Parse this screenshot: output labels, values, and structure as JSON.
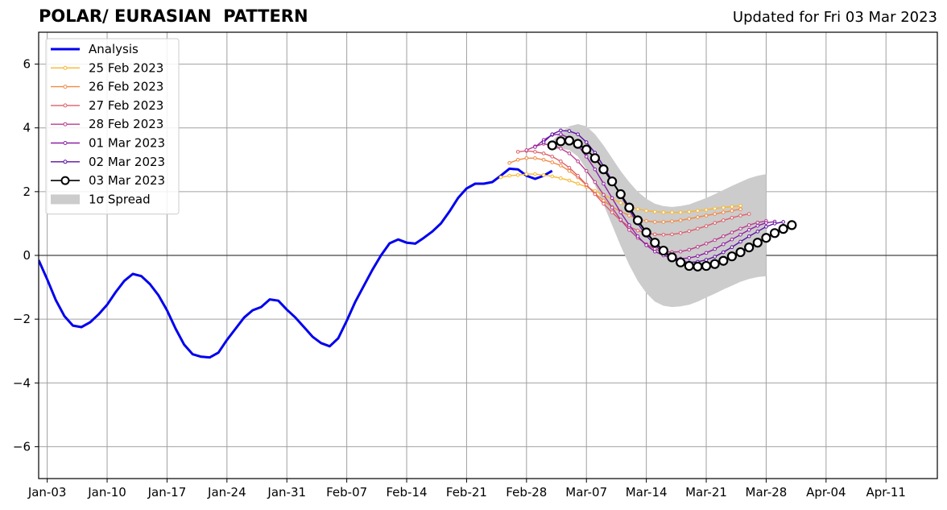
{
  "chart_data": {
    "type": "line",
    "title": "POLAR/ EURASIAN  PATTERN",
    "subtitle": "Updated for Fri 03 Mar 2023",
    "ylim": [
      -7,
      7
    ],
    "yticks": [
      -6,
      -4,
      -2,
      0,
      2,
      4,
      6
    ],
    "ytick_labels": [
      "−6",
      "−4",
      "−2",
      "0",
      "2",
      "4",
      "6"
    ],
    "xlim": [
      "2023-01-02",
      "2023-04-17"
    ],
    "xticks": [
      "2023-01-03",
      "2023-01-10",
      "2023-01-17",
      "2023-01-24",
      "2023-01-31",
      "2023-02-07",
      "2023-02-14",
      "2023-02-21",
      "2023-02-28",
      "2023-03-07",
      "2023-03-14",
      "2023-03-21",
      "2023-03-28",
      "2023-04-04",
      "2023-04-11"
    ],
    "xtick_labels": [
      "Jan-03",
      "Jan-10",
      "Jan-17",
      "Jan-24",
      "Jan-31",
      "Feb-07",
      "Feb-14",
      "Feb-21",
      "Feb-28",
      "Mar-07",
      "Mar-14",
      "Mar-21",
      "Mar-28",
      "Apr-04",
      "Apr-11"
    ],
    "grid": true,
    "legend_position": "top-left",
    "analysis": {
      "name": "Analysis",
      "color": "#0000ee",
      "start": "2023-01-02",
      "values": [
        -0.15,
        -0.75,
        -1.4,
        -1.9,
        -2.2,
        -2.25,
        -2.1,
        -1.85,
        -1.55,
        -1.15,
        -0.8,
        -0.58,
        -0.65,
        -0.9,
        -1.25,
        -1.72,
        -2.3,
        -2.8,
        -3.1,
        -3.18,
        -3.2,
        -3.05,
        -2.65,
        -2.3,
        -1.95,
        -1.72,
        -1.62,
        -1.38,
        -1.42,
        -1.7,
        -1.95,
        -2.25,
        -2.55,
        -2.75,
        -2.85,
        -2.6,
        -2.05,
        -1.45,
        -0.95,
        -0.45,
        0.0,
        0.38,
        0.5,
        0.4,
        0.37,
        0.55,
        0.75,
        1.0,
        1.38,
        1.8,
        2.1,
        2.25,
        2.25,
        2.3,
        2.5,
        2.72,
        2.7,
        2.5,
        2.4,
        2.5,
        2.65
      ]
    },
    "spread": {
      "name": "1σ Spread",
      "color": "#cccccc",
      "start": "2023-03-03",
      "upper": [
        3.6,
        3.85,
        4.05,
        4.12,
        4.05,
        3.8,
        3.45,
        3.05,
        2.65,
        2.3,
        2.0,
        1.78,
        1.62,
        1.55,
        1.52,
        1.55,
        1.6,
        1.7,
        1.8,
        1.92,
        2.05,
        2.18,
        2.3,
        2.42,
        2.5,
        2.55
      ],
      "lower": [
        3.3,
        3.35,
        3.3,
        3.1,
        2.7,
        2.2,
        1.6,
        0.95,
        0.3,
        -0.3,
        -0.8,
        -1.18,
        -1.45,
        -1.58,
        -1.62,
        -1.6,
        -1.55,
        -1.45,
        -1.32,
        -1.2,
        -1.07,
        -0.95,
        -0.83,
        -0.74,
        -0.68,
        -0.65
      ]
    },
    "series": [
      {
        "name": "25 Feb 2023",
        "color": "#f7b731",
        "start": "2023-02-25",
        "values": [
          2.45,
          2.5,
          2.52,
          2.55,
          2.55,
          2.52,
          2.48,
          2.42,
          2.35,
          2.25,
          2.15,
          2.02,
          1.9,
          1.78,
          1.65,
          1.55,
          1.45,
          1.4,
          1.37,
          1.35,
          1.35,
          1.35,
          1.37,
          1.4,
          1.43,
          1.47,
          1.5,
          1.53,
          1.56
        ]
      },
      {
        "name": "26 Feb 2023",
        "color": "#f08a45",
        "start": "2023-02-26",
        "values": [
          2.9,
          3.0,
          3.05,
          3.05,
          3.0,
          2.92,
          2.82,
          2.65,
          2.45,
          2.2,
          1.95,
          1.72,
          1.52,
          1.38,
          1.25,
          1.15,
          1.08,
          1.05,
          1.05,
          1.07,
          1.1,
          1.15,
          1.2,
          1.25,
          1.3,
          1.35,
          1.4,
          1.45
        ]
      },
      {
        "name": "27 Feb 2023",
        "color": "#dd5e6b",
        "start": "2023-02-27",
        "values": [
          3.25,
          3.28,
          3.25,
          3.2,
          3.1,
          2.95,
          2.75,
          2.5,
          2.22,
          1.92,
          1.62,
          1.35,
          1.1,
          0.9,
          0.78,
          0.7,
          0.66,
          0.65,
          0.66,
          0.7,
          0.76,
          0.84,
          0.92,
          1.02,
          1.1,
          1.18,
          1.25,
          1.3
        ]
      },
      {
        "name": "28 Feb 2023",
        "color": "#b83d8c",
        "start": "2023-02-28",
        "values": [
          3.3,
          3.42,
          3.5,
          3.45,
          3.35,
          3.2,
          2.95,
          2.65,
          2.3,
          1.9,
          1.5,
          1.12,
          0.8,
          0.55,
          0.35,
          0.2,
          0.12,
          0.1,
          0.12,
          0.18,
          0.27,
          0.37,
          0.48,
          0.6,
          0.72,
          0.84,
          0.95,
          1.03,
          1.08
        ]
      },
      {
        "name": "01 Mar 2023",
        "color": "#8e1fa6",
        "start": "2023-03-01",
        "values": [
          3.4,
          3.62,
          3.78,
          3.8,
          3.68,
          3.45,
          3.1,
          2.7,
          2.25,
          1.8,
          1.35,
          0.95,
          0.6,
          0.32,
          0.12,
          0.0,
          -0.08,
          -0.1,
          -0.08,
          -0.02,
          0.08,
          0.2,
          0.35,
          0.5,
          0.65,
          0.8,
          0.93,
          1.02,
          1.06
        ]
      },
      {
        "name": "02 Mar 2023",
        "color": "#5a0fa0",
        "start": "2023-03-02",
        "values": [
          3.55,
          3.8,
          3.92,
          3.9,
          3.8,
          3.55,
          3.22,
          2.8,
          2.35,
          1.88,
          1.42,
          1.0,
          0.62,
          0.32,
          0.08,
          -0.08,
          -0.18,
          -0.22,
          -0.2,
          -0.14,
          -0.04,
          0.1,
          0.26,
          0.43,
          0.6,
          0.75,
          0.9,
          1.0,
          1.05
        ]
      },
      {
        "name": "03 Mar 2023",
        "color": "#000000",
        "start": "2023-03-03",
        "values": [
          3.45,
          3.58,
          3.6,
          3.5,
          3.32,
          3.05,
          2.7,
          2.32,
          1.92,
          1.5,
          1.1,
          0.72,
          0.4,
          0.15,
          -0.06,
          -0.22,
          -0.33,
          -0.35,
          -0.33,
          -0.27,
          -0.17,
          -0.03,
          0.1,
          0.25,
          0.4,
          0.55,
          0.7,
          0.83,
          0.95
        ]
      }
    ]
  }
}
